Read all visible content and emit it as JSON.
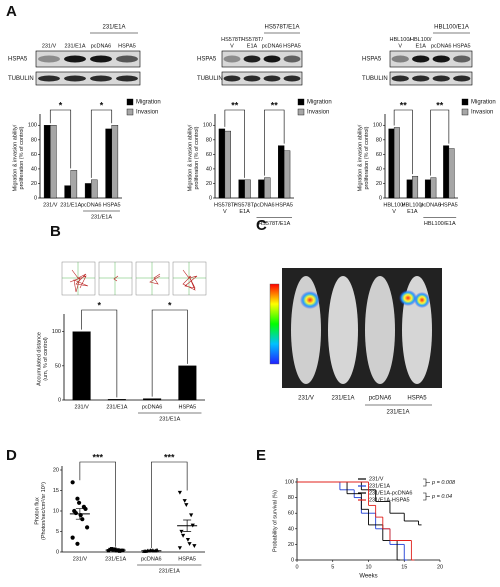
{
  "panels": [
    "A",
    "B",
    "C",
    "D",
    "E"
  ],
  "blots": [
    {
      "group": "231/E1A",
      "lanes": [
        [
          "231/V"
        ],
        [
          "231/E1A"
        ],
        [
          "pcDNA6"
        ],
        [
          "HSPA5"
        ]
      ],
      "rows": [
        "HSPA5",
        "TUBULIN"
      ]
    },
    {
      "group": "HS578T/E1A",
      "lanes": [
        [
          "HS578T/",
          "V"
        ],
        [
          "HS578T/",
          "E1A"
        ],
        [
          "pcDNA6"
        ],
        [
          "HSPA5"
        ]
      ],
      "rows": [
        "HSPA5",
        "TUBULIN"
      ]
    },
    {
      "group": "HBL100/E1A",
      "lanes": [
        [
          "HBL100/",
          "V"
        ],
        [
          "HBL100/",
          "E1A"
        ],
        [
          "pcDNA6"
        ],
        [
          "HSPA5"
        ]
      ],
      "rows": [
        "HSPA5",
        "TUBULIN"
      ]
    }
  ],
  "imaging": {
    "lanes": [
      "231/V",
      "231/E1A",
      "pcDNA6",
      "HSPA5"
    ],
    "group": "231/E1A"
  },
  "chart_data": [
    {
      "type": "bar",
      "ylabel": [
        "Migration & invasion ability/",
        "proliferation (% of control)"
      ],
      "categories": [
        [
          "231/V"
        ],
        [
          "231/E1A"
        ],
        [
          "pcDNA6"
        ],
        [
          "HSPA5"
        ]
      ],
      "group": "231/E1A",
      "series": [
        {
          "name": "Migration",
          "color": "#000000",
          "values": [
            100,
            17,
            20,
            95
          ]
        },
        {
          "name": "Invasion",
          "color": "#a6a6a6",
          "values": [
            100,
            38,
            25,
            100
          ]
        }
      ],
      "ylim": [
        0,
        110
      ],
      "yticks": [
        0,
        20,
        40,
        60,
        80,
        100
      ],
      "annotations": [
        "*",
        "*"
      ]
    },
    {
      "type": "bar",
      "ylabel": [
        "Migration & invasion ability/",
        "proliferation (% of control)"
      ],
      "categories": [
        [
          "HS578T/",
          "V"
        ],
        [
          "HS578T/",
          "E1A"
        ],
        [
          "pcDNA6"
        ],
        [
          "HSPA5"
        ]
      ],
      "group": "HS578T/E1A",
      "series": [
        {
          "name": "Migration",
          "color": "#000000",
          "values": [
            95,
            25,
            25,
            72
          ]
        },
        {
          "name": "Invasion",
          "color": "#a6a6a6",
          "values": [
            92,
            25,
            28,
            65
          ]
        }
      ],
      "ylim": [
        0,
        110
      ],
      "yticks": [
        0,
        20,
        40,
        60,
        80,
        100
      ],
      "annotations": [
        "**",
        "**"
      ]
    },
    {
      "type": "bar",
      "ylabel": [
        "Migration & invasion ability/",
        "proliferation (% of control)"
      ],
      "categories": [
        [
          "HBL100/",
          "V"
        ],
        [
          "HBL100/",
          "E1A"
        ],
        [
          "pcDNA6"
        ],
        [
          "HSPA5"
        ]
      ],
      "group": "HBL100/E1A",
      "series": [
        {
          "name": "Migration",
          "color": "#000000",
          "values": [
            95,
            25,
            25,
            72
          ]
        },
        {
          "name": "Invasion",
          "color": "#a6a6a6",
          "values": [
            97,
            30,
            28,
            68
          ]
        }
      ],
      "ylim": [
        0,
        110
      ],
      "yticks": [
        0,
        20,
        40,
        60,
        80,
        100
      ],
      "annotations": [
        "**",
        "**"
      ]
    },
    {
      "type": "bar",
      "ylabel": [
        "Accumulated distance",
        "(um, % of control)"
      ],
      "categories": [
        [
          "231/V"
        ],
        [
          "231/E1A"
        ],
        [
          "pcDNA6"
        ],
        [
          "HSPA5"
        ]
      ],
      "group": "231/E1A",
      "series": [
        {
          "name": null,
          "color": "#000000",
          "values": [
            100,
            1,
            2,
            50
          ]
        }
      ],
      "ylim": [
        0,
        120
      ],
      "yticks": [
        0,
        50,
        100
      ],
      "annotations": [
        "*",
        "*"
      ]
    },
    {
      "type": "dot",
      "ylabel": [
        "Photon flux",
        "(Photon/sec/cm²/sr 10⁵)"
      ],
      "categories": [
        [
          "231/V"
        ],
        [
          "231/E1A"
        ],
        [
          "pcDNA6"
        ],
        [
          "HSPA5"
        ]
      ],
      "group": "231/E1A",
      "points": [
        [
          17,
          13,
          12,
          11,
          10.5,
          10,
          9.5,
          9,
          8,
          6,
          3.5,
          2
        ],
        [
          0.3,
          0.5,
          0.7,
          0.2,
          0.4,
          0.6,
          0.8,
          0.3,
          0.5,
          0.4
        ],
        [
          0.2,
          0.3,
          0.4,
          0.3,
          0.5,
          0.2,
          0.3,
          0.4,
          0.3
        ],
        [
          14.5,
          12.5,
          11.5,
          9,
          6.5,
          5,
          4,
          3,
          2,
          1.5,
          1
        ]
      ],
      "means": [
        9.3,
        0.47,
        0.32,
        6.4
      ],
      "sem": [
        1.3,
        0.06,
        0.03,
        1.4
      ],
      "ylim": [
        0,
        20
      ],
      "yticks": [
        0,
        5,
        10,
        15,
        20
      ],
      "annotations": [
        "***",
        "***"
      ]
    },
    {
      "type": "line",
      "xlabel": "Weeks",
      "ylabel": [
        "Probability of survival (%)"
      ],
      "series": [
        {
          "name": "231/V",
          "color": "#000000",
          "x": [
            0,
            9,
            11,
            13,
            15,
            17
          ],
          "values": [
            100,
            90,
            75,
            60,
            50,
            45
          ]
        },
        {
          "name": "231/E1A",
          "color": "#1f3fd6",
          "x": [
            0,
            6,
            8,
            9,
            11,
            13,
            15
          ],
          "values": [
            100,
            90,
            80,
            60,
            40,
            20,
            0
          ]
        },
        {
          "name": "231/E1A-pcDNA6",
          "color": "#000000",
          "x": [
            0,
            7,
            9,
            10,
            12,
            14
          ],
          "values": [
            100,
            85,
            65,
            45,
            25,
            0
          ]
        },
        {
          "name": "231/E1A-HSPA5",
          "color": "#e0201b",
          "x": [
            0,
            10,
            11,
            12,
            13,
            16
          ],
          "values": [
            100,
            70,
            55,
            40,
            25,
            0
          ]
        }
      ],
      "xlim": [
        0,
        20
      ],
      "xticks": [
        0,
        5,
        10,
        15,
        20
      ],
      "ylim": [
        0,
        100
      ],
      "yticks": [
        0,
        20,
        40,
        60,
        80,
        100
      ],
      "annotations": [
        "p = 0.008",
        "p = 0.04"
      ]
    }
  ]
}
